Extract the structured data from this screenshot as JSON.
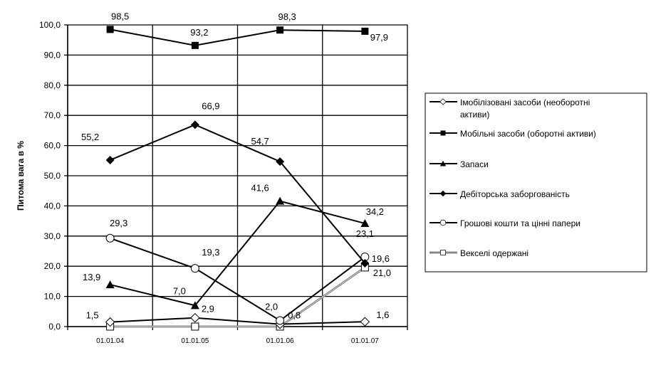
{
  "chart_data": {
    "type": "line",
    "title": "",
    "xlabel": "",
    "ylabel": "Питома вага в %",
    "ylim": [
      0,
      100
    ],
    "yticks": [
      "0,0",
      "10,0",
      "20,0",
      "30,0",
      "40,0",
      "50,0",
      "60,0",
      "70,0",
      "80,0",
      "90,0",
      "100,0"
    ],
    "categories": [
      "01.01.04",
      "01.01.05",
      "01.01.06",
      "01.01.07"
    ],
    "grid": true,
    "legend_position": "right",
    "series": [
      {
        "name": "Імобілізовані засоби (необоротні активи)",
        "marker": "diamond-open",
        "values": [
          1.5,
          2.9,
          0.8,
          1.6
        ],
        "labels": [
          "1,5",
          "2,9",
          "0,8",
          "1,6"
        ]
      },
      {
        "name": "Мобільні засоби (оборотні активи)",
        "marker": "square-filled",
        "values": [
          98.5,
          93.2,
          98.3,
          97.9
        ],
        "labels": [
          "98,5",
          "93,2",
          "98,3",
          "97,9"
        ]
      },
      {
        "name": "Запаси",
        "marker": "triangle-filled",
        "values": [
          13.9,
          7.0,
          41.6,
          34.2
        ],
        "labels": [
          "13,9",
          "7,0",
          "41,6",
          "34,2"
        ]
      },
      {
        "name": "Дебіторська заборгованість",
        "marker": "diamond-filled",
        "values": [
          55.2,
          66.9,
          54.7,
          21.0
        ],
        "labels": [
          "55,2",
          "66,9",
          "54,7",
          "21,0"
        ]
      },
      {
        "name": "Грошові кошти та цінні папери",
        "marker": "circle-open",
        "values": [
          29.3,
          19.3,
          2.0,
          23.1
        ],
        "labels": [
          "29,3",
          "19,3",
          "2,0",
          "23,1"
        ]
      },
      {
        "name": "Векселі одержані",
        "marker": "square-open",
        "values": [
          0,
          0,
          0,
          19.6
        ],
        "labels": [
          "",
          "",
          "",
          "19,6"
        ]
      }
    ]
  }
}
